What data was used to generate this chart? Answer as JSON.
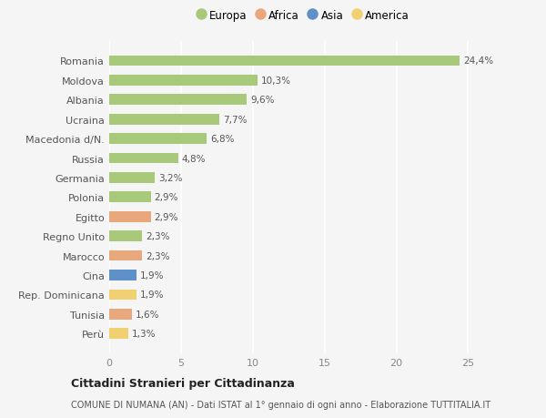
{
  "countries": [
    "Romania",
    "Moldova",
    "Albania",
    "Ucraina",
    "Macedonia d/N.",
    "Russia",
    "Germania",
    "Polonia",
    "Egitto",
    "Regno Unito",
    "Marocco",
    "Cina",
    "Rep. Dominicana",
    "Tunisia",
    "Perù"
  ],
  "values": [
    24.4,
    10.3,
    9.6,
    7.7,
    6.8,
    4.8,
    3.2,
    2.9,
    2.9,
    2.3,
    2.3,
    1.9,
    1.9,
    1.6,
    1.3
  ],
  "categories": [
    "Europa",
    "Europa",
    "Europa",
    "Europa",
    "Europa",
    "Europa",
    "Europa",
    "Europa",
    "Africa",
    "Europa",
    "Africa",
    "Asia",
    "America",
    "Africa",
    "America"
  ],
  "colors": {
    "Europa": "#a8c87a",
    "Africa": "#e8a87c",
    "Asia": "#6090c8",
    "America": "#f0d070"
  },
  "legend_order": [
    "Europa",
    "Africa",
    "Asia",
    "America"
  ],
  "xlim": [
    0,
    27
  ],
  "xticks": [
    0,
    5,
    10,
    15,
    20,
    25
  ],
  "title": "Cittadini Stranieri per Cittadinanza",
  "subtitle": "COMUNE DI NUMANA (AN) - Dati ISTAT al 1° gennaio di ogni anno - Elaborazione TUTTITALIA.IT",
  "background_color": "#f5f5f5",
  "grid_color": "#ffffff",
  "bar_height": 0.55
}
